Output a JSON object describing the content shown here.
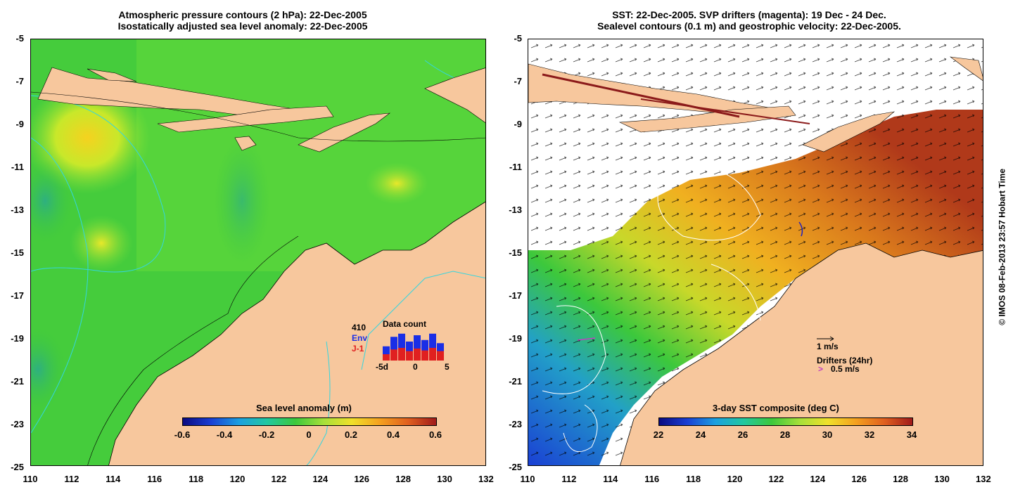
{
  "left_panel": {
    "title_line1": "Atmospheric pressure contours (2 hPa): 22-Dec-2005",
    "title_line2": "Isostatically adjusted sea level anomaly: 22-Dec-2005",
    "colorbar_title": "Sea level anomaly (m)",
    "colorbar_ticks": [
      "-0.6",
      "-0.4",
      "-0.2",
      "0",
      "0.2",
      "0.4",
      "0.6"
    ],
    "inset": {
      "count": "410",
      "label_env": "Env",
      "label_j1": "J-1",
      "title": "Data count",
      "axis_ticks": [
        "-5d",
        "0",
        "5"
      ],
      "env_bars": [
        0.45,
        0.75,
        0.85,
        0.6,
        0.8,
        0.65,
        0.85,
        0.55
      ],
      "j1_bars": [
        0.2,
        0.35,
        0.4,
        0.3,
        0.38,
        0.32,
        0.4,
        0.3
      ]
    }
  },
  "right_panel": {
    "title_line1": "SST: 22-Dec-2005. SVP drifters (magenta): 19 Dec - 24 Dec.",
    "title_line2": "Sealevel contours (0.1 m) and geostrophic velocity: 22-Dec-2005.",
    "colorbar_title": "3-day SST composite (deg C)",
    "colorbar_ticks": [
      "22",
      "24",
      "26",
      "28",
      "30",
      "32",
      "34"
    ],
    "velocity_scale": "1 m/s",
    "drifters_title": "Drifters (24hr)",
    "drifters_symbol": ">",
    "drifters_scale": "0.5 m/s"
  },
  "axes": {
    "y_ticks": [
      "-5",
      "-7",
      "-9",
      "-11",
      "-13",
      "-15",
      "-17",
      "-19",
      "-21",
      "-23",
      "-25"
    ],
    "x_ticks": [
      "110",
      "112",
      "114",
      "116",
      "118",
      "120",
      "122",
      "124",
      "126",
      "128",
      "130",
      "132"
    ]
  },
  "credit": "© IMOS 08-Feb-2013 23:57 Hobart Time",
  "colors": {
    "land": "#f7c79d",
    "sea_green": "#3cc83c",
    "sea_light": "#7ee03a",
    "contour_cyan": "#33d6e0",
    "sst_orange": "#d9781c",
    "sst_red": "#b0391a",
    "sst_blue": "#1a3fd4"
  }
}
